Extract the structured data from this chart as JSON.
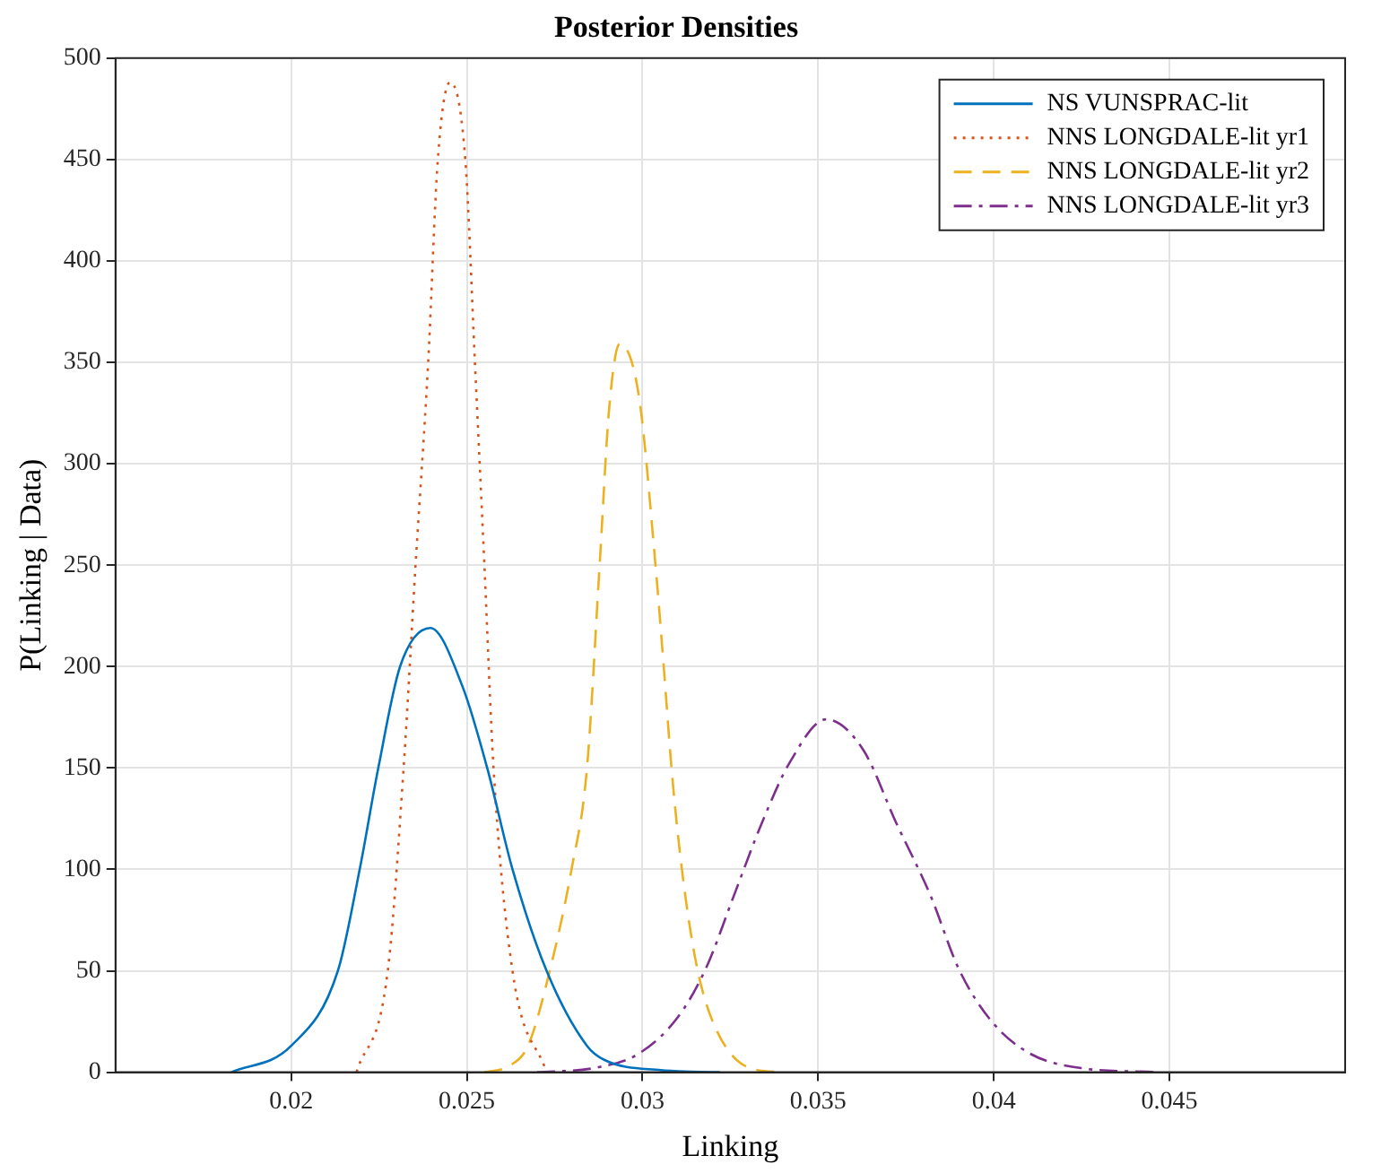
{
  "chart_data": {
    "type": "line",
    "title": "Posterior Densities",
    "xlabel": "Linking",
    "ylabel": "P(Linking | Data)",
    "xlim": [
      0.015,
      0.05
    ],
    "xticks": [
      0.02,
      0.025,
      0.03,
      0.035,
      0.04,
      0.045
    ],
    "ylim": [
      0,
      500
    ],
    "yticks": [
      0,
      50,
      100,
      150,
      200,
      250,
      300,
      350,
      400,
      450,
      500
    ],
    "grid": true,
    "legend": "top right",
    "marker": "none",
    "series": [
      {
        "name": "NS VUNSPRAC-lit",
        "color": "#0072bd",
        "line_style": "solid",
        "x": [
          0.0183,
          0.02,
          0.02133,
          0.02195,
          0.02248,
          0.0231,
          0.02396,
          0.02488,
          0.02558,
          0.0263,
          0.02727,
          0.02842,
          0.02892,
          0.03052,
          0.0322
        ],
        "values": [
          0,
          13,
          50,
          100,
          150,
          200,
          219,
          190,
          150,
          100,
          50,
          13,
          6,
          1,
          0
        ]
      },
      {
        "name": "NNS LONGDALE-lit yr1",
        "color": "#d95319",
        "line_style": "dotted",
        "x": [
          0.02186,
          0.02275,
          0.0232,
          0.02354,
          0.0239,
          0.02417,
          0.02452,
          0.02496,
          0.02523,
          0.0255,
          0.02576,
          0.0263,
          0.02727
        ],
        "values": [
          0,
          50,
          150,
          250,
          350,
          449,
          488,
          449,
          350,
          250,
          150,
          50,
          0
        ]
      },
      {
        "name": "NNS LONGDALE-lit yr2",
        "color": "#edb120",
        "line_style": "dashed",
        "x": [
          0.0255,
          0.0262,
          0.02674,
          0.02736,
          0.02798,
          0.02842,
          0.02878,
          0.02905,
          0.02935,
          0.0299,
          0.03036,
          0.0306,
          0.03084,
          0.03115,
          0.03156,
          0.0321,
          0.03306,
          0.034
        ],
        "values": [
          0,
          3,
          13,
          50,
          100,
          150,
          250,
          327,
          359,
          333,
          252,
          201,
          147,
          96,
          51,
          21,
          2,
          0
        ]
      },
      {
        "name": "NNS LONGDALE-lit yr3",
        "color": "#7e2f8e",
        "line_style": "dashdot",
        "x": [
          0.027,
          0.0286,
          0.02988,
          0.031,
          0.0318,
          0.0326,
          0.0334,
          0.0342,
          0.03523,
          0.03628,
          0.03722,
          0.0382,
          0.039,
          0.03994,
          0.04105,
          0.04249,
          0.0447
        ],
        "values": [
          0,
          2,
          9,
          27,
          51,
          87,
          123,
          153,
          174,
          159,
          123,
          87,
          51,
          25,
          9,
          2,
          0
        ]
      }
    ]
  }
}
